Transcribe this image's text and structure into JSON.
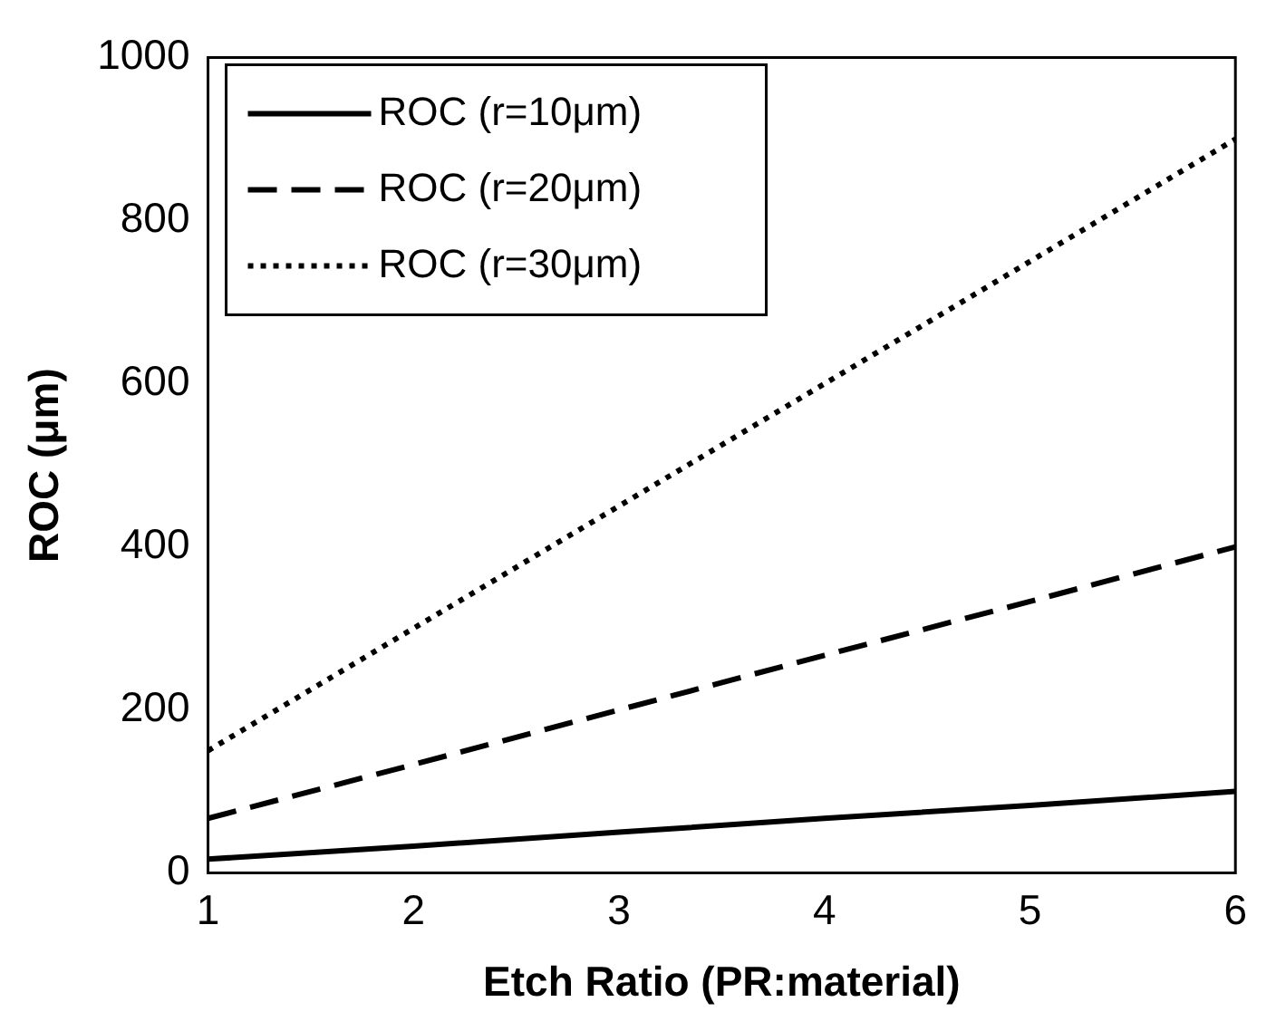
{
  "chart_data": {
    "type": "line",
    "xlabel": "Etch Ratio (PR:material)",
    "ylabel": "ROC (μm)",
    "x": [
      1,
      2,
      3,
      4,
      5,
      6
    ],
    "series": [
      {
        "name": "ROC (r=10μm)",
        "color": "#000000",
        "line_style": "solid",
        "values": [
          17,
          33,
          50,
          67,
          83,
          100
        ]
      },
      {
        "name": "ROC (r=20μm)",
        "color": "#000000",
        "line_style": "dashed",
        "values": [
          67,
          133,
          200,
          267,
          333,
          400
        ]
      },
      {
        "name": "ROC (r=30μm)",
        "color": "#000000",
        "line_style": "dotted",
        "values": [
          150,
          300,
          450,
          600,
          750,
          900
        ]
      }
    ],
    "xlim": [
      1,
      6
    ],
    "xticks": [
      1,
      2,
      3,
      4,
      5,
      6
    ],
    "ylim": [
      0,
      1000
    ],
    "yticks": [
      0,
      200,
      400,
      600,
      800,
      1000
    ],
    "grid": false,
    "legend": "top left",
    "marker": "none"
  }
}
